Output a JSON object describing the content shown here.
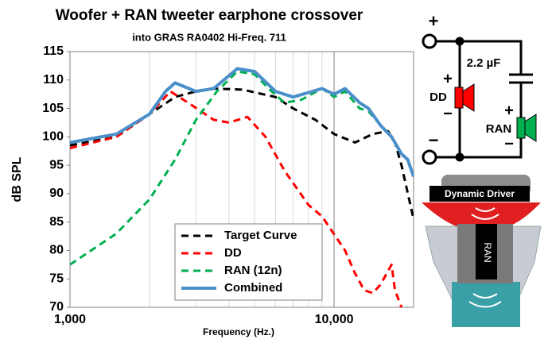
{
  "chart_data": {
    "type": "line",
    "title": "Woofer + RAN tweeter earphone crossover",
    "subtitle": "into GRAS RA0402 Hi-Freq. 711",
    "x_label": "Frequency (Hz.)",
    "y_label": "dB SPL",
    "log_x": true,
    "xlim": [
      1000,
      20000
    ],
    "xticks": [
      {
        "value": 1000,
        "label": "1,000"
      },
      {
        "value": 10000,
        "label": "10,000"
      }
    ],
    "ylim": [
      70,
      115
    ],
    "yticks": [
      70,
      75,
      80,
      85,
      90,
      95,
      100,
      105,
      110,
      115
    ],
    "grid": true,
    "legend": "bottom-center",
    "series": [
      {
        "name": "Target Curve",
        "color": "#000000",
        "style": "dashed",
        "x": [
          1000,
          1500,
          2000,
          2500,
          3000,
          3500,
          4500,
          6000,
          7000,
          8500,
          10000,
          12000,
          14000,
          16000,
          17000,
          18000,
          20000
        ],
        "values": [
          98.5,
          100,
          104,
          107,
          108,
          108.5,
          108.3,
          107,
          105,
          103,
          100.5,
          99,
          100.5,
          101,
          99,
          95,
          85.5
        ]
      },
      {
        "name": "DD",
        "color": "#ff0000",
        "style": "dashed",
        "x": [
          1000,
          1500,
          2000,
          2400,
          2800,
          3500,
          4000,
          4700,
          5500,
          6500,
          8000,
          9000,
          11000,
          12000,
          13000,
          14000,
          15000,
          16500,
          17000,
          18000
        ],
        "values": [
          98,
          100,
          104,
          108,
          106,
          103,
          102.5,
          103.5,
          100,
          94,
          88,
          86,
          80,
          76,
          73,
          72.5,
          74,
          77.5,
          73,
          70
        ]
      },
      {
        "name": "RAN (12n)",
        "color": "#00b050",
        "style": "dashed",
        "x": [
          1000,
          1500,
          2000,
          2500,
          3000,
          3600,
          4300,
          5000,
          5800,
          6500,
          7500,
          9000,
          10000,
          11000,
          12500,
          13500,
          15000,
          16500,
          18000,
          19000,
          20000
        ],
        "values": [
          77.5,
          83,
          89,
          96,
          103,
          108,
          111.5,
          111,
          108,
          106,
          106.5,
          108.5,
          107,
          108,
          105,
          104.5,
          102,
          100,
          97,
          96,
          93
        ]
      },
      {
        "name": "Combined",
        "color": "#4a8fc9",
        "style": "solid",
        "x": [
          1000,
          1500,
          2000,
          2300,
          2500,
          3000,
          3500,
          4300,
          5000,
          6000,
          7000,
          9000,
          10000,
          11000,
          12500,
          13500,
          15000,
          16500,
          18000,
          19000,
          20000
        ],
        "values": [
          99,
          100.5,
          104,
          108,
          109.5,
          108,
          108.5,
          112,
          111.5,
          108,
          107,
          108.5,
          107.5,
          108.5,
          106,
          105,
          102,
          100,
          97,
          96,
          93
        ]
      }
    ]
  },
  "diagram": {
    "terminal_plus": "+",
    "terminal_minus": "−",
    "capacitor": "2.2 µF",
    "dd_label": "DD",
    "dd_plus": "+",
    "dd_minus": "−",
    "ran_label": "RAN",
    "ran_plus": "+",
    "ran_minus": "−",
    "driver_label": "Dynamic Driver",
    "ran_part_label": "RAN"
  }
}
